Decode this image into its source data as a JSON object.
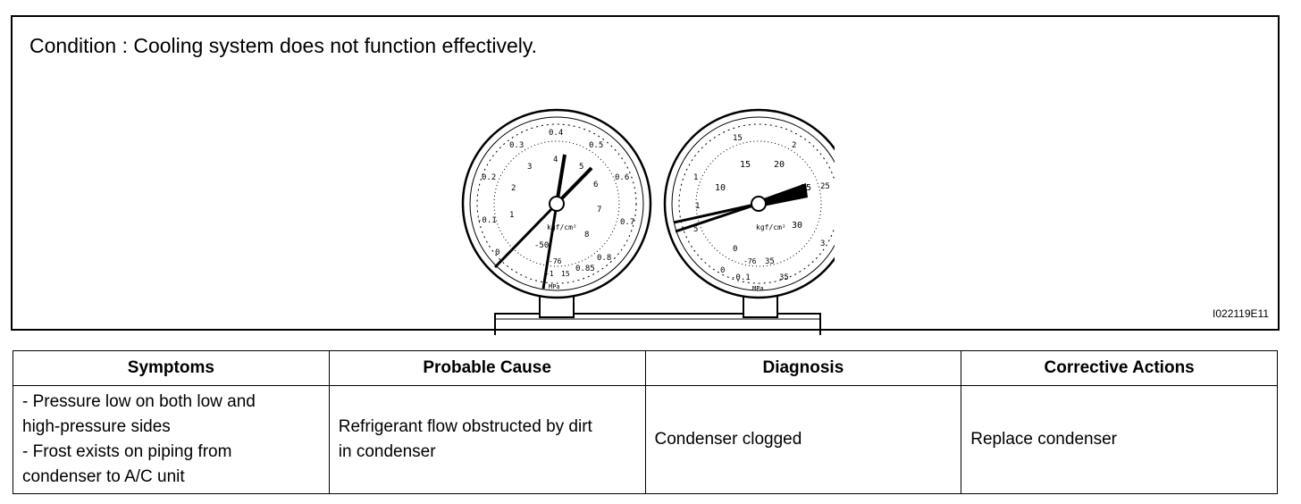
{
  "figure": {
    "condition_text": "Condition : Cooling system does not function effectively.",
    "figure_id": "I022119E11",
    "low_gauge": {
      "outer_labels": [
        "0.2",
        "0.3",
        "0.4",
        "0.5",
        "0.6",
        "0.7",
        "0.8",
        "0.85",
        "-0.1",
        "0"
      ],
      "inner_labels": [
        "1",
        "2",
        "3",
        "4",
        "5",
        "6",
        "7",
        "8",
        "-76",
        "-50",
        "-1",
        "15"
      ],
      "unit_label": "kgf/cm²",
      "mpa_label": "MPa"
    },
    "high_gauge": {
      "outer_labels": [
        "15",
        "2",
        "25",
        "3",
        "35",
        "-0.1",
        "0",
        "1"
      ],
      "inner_labels": [
        "10",
        "15",
        "20",
        "25",
        "30",
        "35",
        "-76",
        "0",
        "5",
        "1"
      ],
      "unit_label": "kgf/cm²",
      "mpa_label": "MPa"
    }
  },
  "table": {
    "headers": [
      "Symptoms",
      "Probable Cause",
      "Diagnosis",
      "Corrective Actions"
    ],
    "row": {
      "symptoms": [
        "- Pressure low on both low and",
        "high-pressure sides",
        "- Frost exists on piping from",
        "condenser to A/C unit"
      ],
      "probable_cause": [
        "Refrigerant flow obstructed by dirt",
        "in condenser"
      ],
      "diagnosis": "Condenser clogged",
      "corrective_actions": "Replace condenser"
    }
  }
}
